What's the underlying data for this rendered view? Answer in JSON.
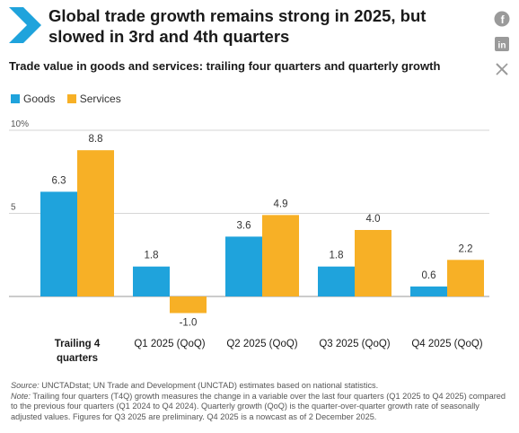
{
  "header": {
    "title": "Global trade growth remains strong in 2025, but slowed in 3rd and 4th quarters"
  },
  "social": [
    {
      "icon": "facebook-icon",
      "glyph": "f"
    },
    {
      "icon": "linkedin-icon",
      "glyph": "in"
    },
    {
      "icon": "x-icon",
      "glyph": "X"
    }
  ],
  "colors": {
    "goods": "#1FA3DC",
    "services": "#F7B026",
    "accent": "#1FA3DC",
    "grid": "#d6d6d6",
    "axis": "#9a9a9a"
  },
  "chart_data": {
    "type": "bar",
    "title": "Trade value in goods and services: trailing four quarters and quarterly growth",
    "categories": [
      "Trailing 4 quarters",
      "Q1 2025 (QoQ)",
      "Q2 2025 (QoQ)",
      "Q3 2025 (QoQ)",
      "Q4 2025 (QoQ)"
    ],
    "category_bold": [
      true,
      false,
      false,
      false,
      false
    ],
    "series": [
      {
        "name": "Goods",
        "values": [
          6.3,
          1.8,
          3.6,
          1.8,
          0.6
        ],
        "labels": [
          "6.3",
          "1.8",
          "3.6",
          "1.8",
          "0.6"
        ]
      },
      {
        "name": "Services",
        "values": [
          8.8,
          -1.0,
          4.9,
          4.0,
          2.2
        ],
        "labels": [
          "8.8",
          "-1.0",
          "4.9",
          "4.0",
          "2.2"
        ]
      }
    ],
    "y_ticks": [
      {
        "value": 5,
        "label": "5"
      },
      {
        "value": 10,
        "label": "10%"
      }
    ],
    "ylim": [
      -1.2,
      10
    ],
    "grid": true,
    "legend": "top-left"
  },
  "footnote": {
    "source_lead": "Source:",
    "source_text": " UNCTADstat; UN Trade and Development (UNCTAD) estimates based on national statistics.",
    "note_lead": "Note:",
    "note_text": " Trailing four quarters (T4Q) growth measures the change in a variable over the last four quarters (Q1 2025 to Q4 2025) compared to the previous four quarters (Q1 2024 to Q4 2024). Quarterly growth (QoQ) is the quarter-over-quarter growth rate of seasonally adjusted values. Figures for Q3 2025 are preliminary. Q4 2025 is a nowcast as of 2 December 2025."
  }
}
